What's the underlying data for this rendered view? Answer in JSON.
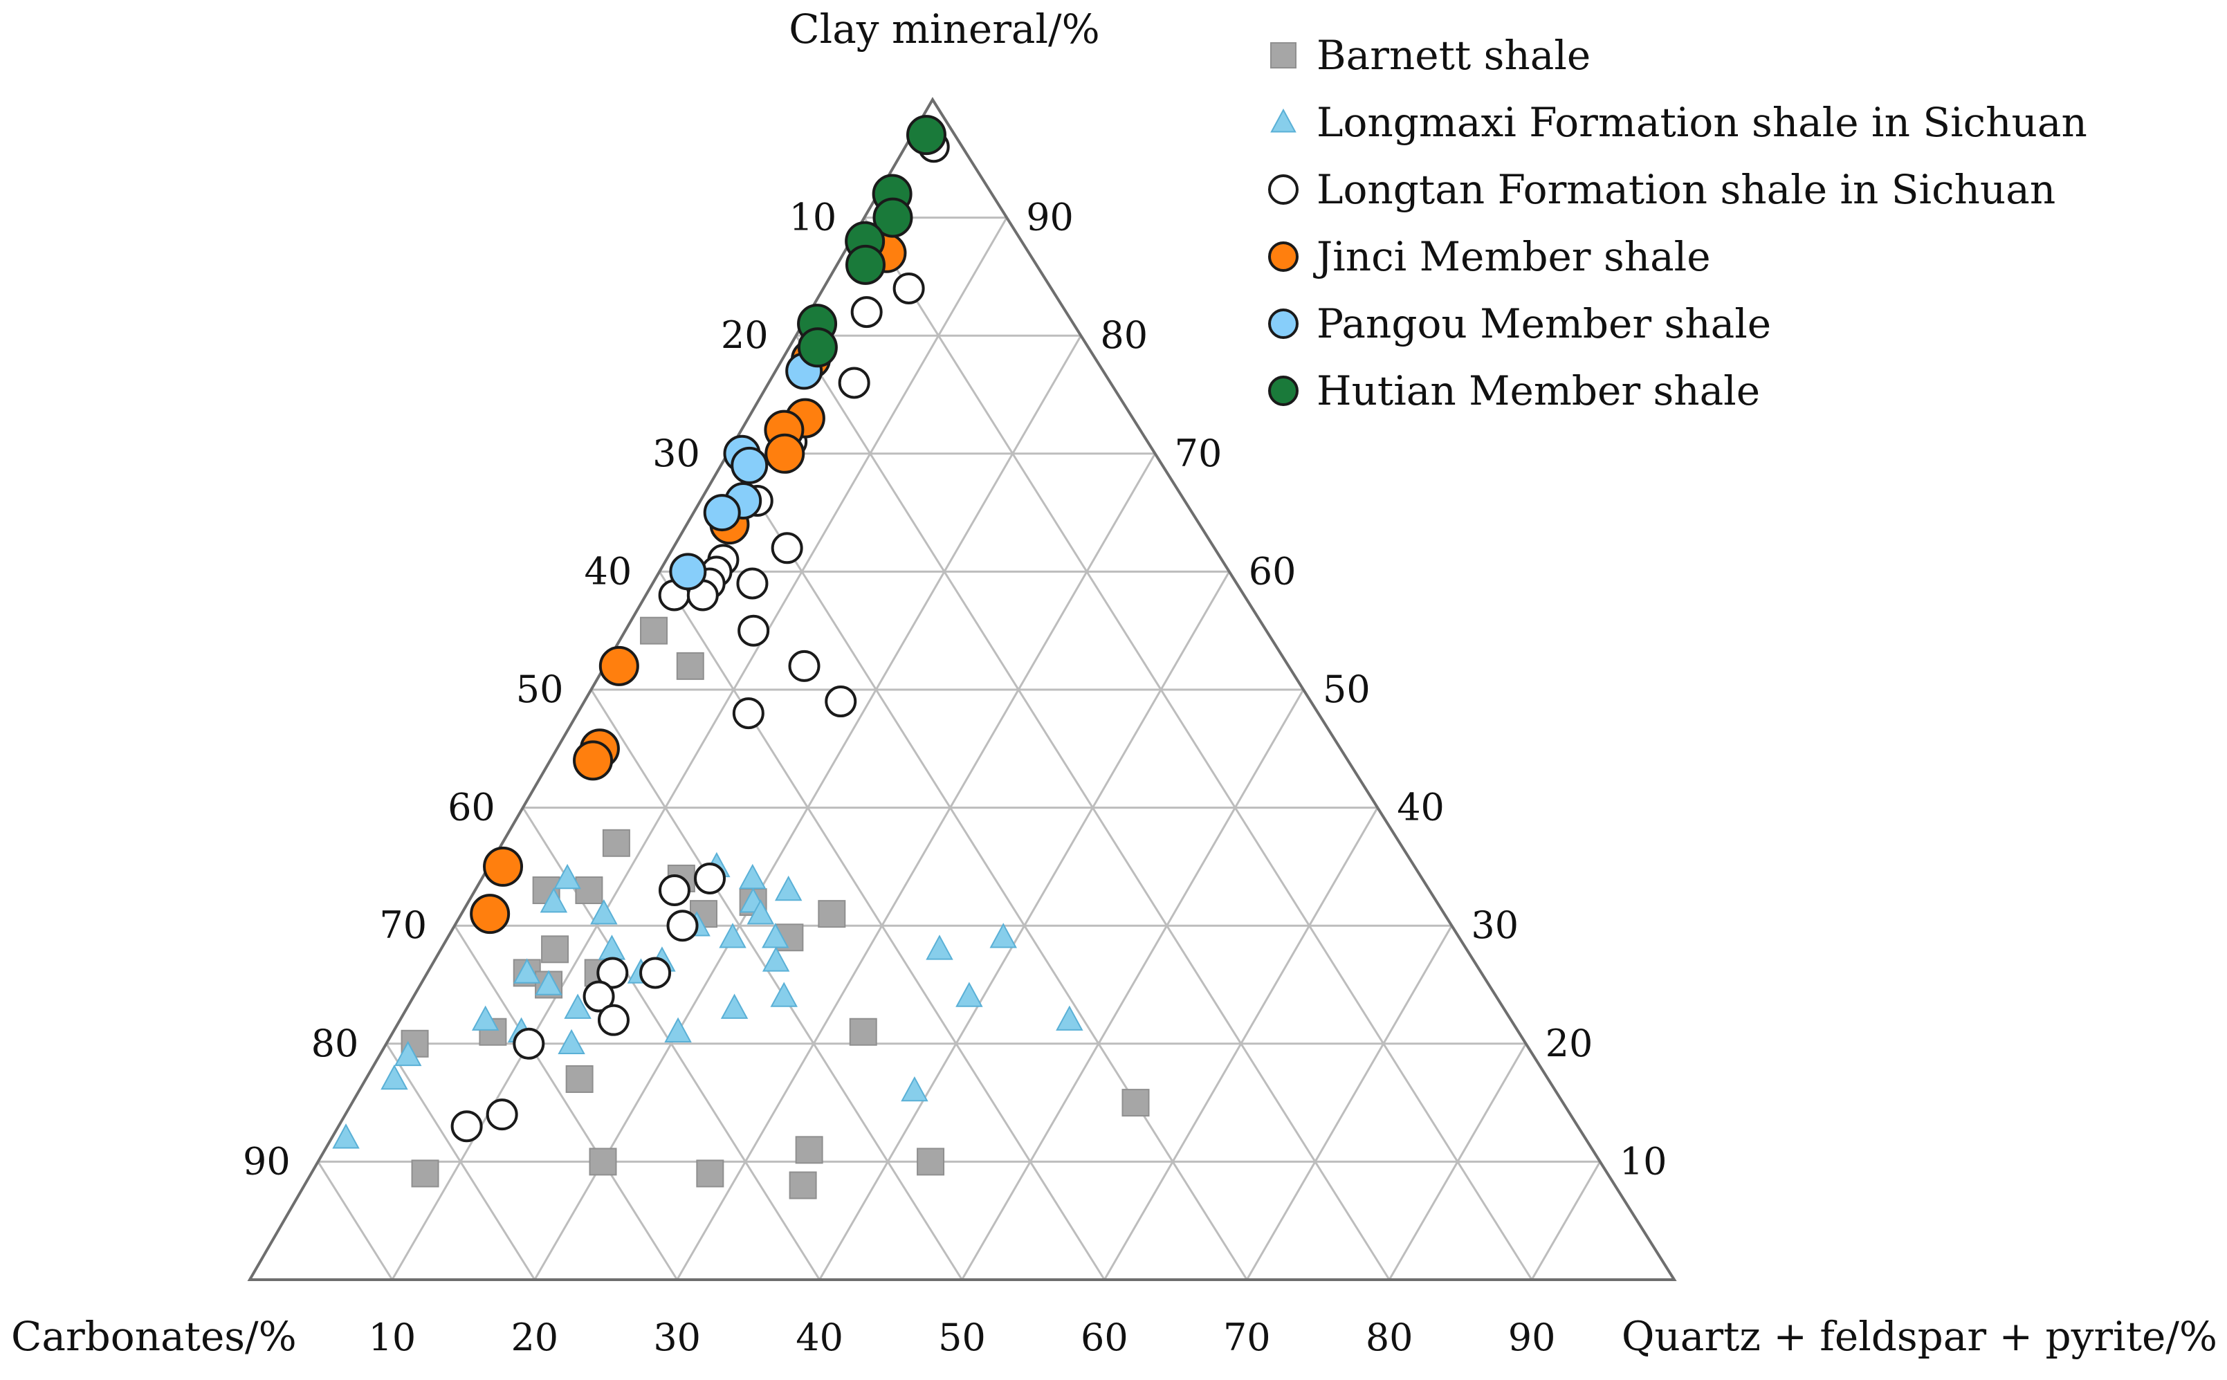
{
  "chart_data": {
    "type": "ternary-scatter",
    "axes": {
      "top": "Clay mineral/%",
      "left": "Carbonates/%",
      "right": "Quartz + feldspar + pyrite/%"
    },
    "left_ticks": [
      "10",
      "20",
      "30",
      "40",
      "50",
      "60",
      "70",
      "80",
      "90"
    ],
    "right_ticks": [
      "90",
      "80",
      "70",
      "60",
      "50",
      "40",
      "30",
      "20",
      "10"
    ],
    "bottom_ticks": [
      "10",
      "20",
      "30",
      "40",
      "50",
      "60",
      "70",
      "80",
      "90"
    ],
    "grid": true,
    "legend_position": "top-right",
    "colors": {
      "barnett": "#a6a6a6",
      "longmaxi": "#87ceeb",
      "longtan": "#ffffff",
      "jinci": "#ff7f0e",
      "pangou": "#87cefa",
      "hutian": "#1a7a3a",
      "grid": "#bdbdbd",
      "frame": "#6e6e6e"
    },
    "series": [
      {
        "name": "Barnett shale",
        "marker": "square",
        "points": [
          [
            52,
            42,
            6
          ],
          [
            37,
            55,
            8
          ],
          [
            34,
            52,
            14
          ],
          [
            33,
            59,
            8
          ],
          [
            33,
            62,
            5
          ],
          [
            32,
            48,
            20
          ],
          [
            31,
            52,
            17
          ],
          [
            29,
            47,
            24
          ],
          [
            28,
            64,
            8
          ],
          [
            26,
            67,
            7
          ],
          [
            25,
            66,
            9
          ],
          [
            31,
            43,
            26
          ],
          [
            26,
            62,
            12
          ],
          [
            21,
            72,
            7
          ],
          [
            15,
            30,
            55
          ],
          [
            10,
            47,
            43
          ],
          [
            11,
            55,
            34
          ],
          [
            9,
            63,
            28
          ],
          [
            8,
            57,
            35
          ],
          [
            10,
            70,
            20
          ],
          [
            17,
            68,
            15
          ],
          [
            21,
            46,
            33
          ],
          [
            9,
            83,
            8
          ],
          [
            20,
            78,
            2
          ],
          [
            55,
            43,
            2
          ]
        ]
      },
      {
        "name": "Longmaxi Formation shale in Sichuan",
        "marker": "triangle",
        "points": [
          [
            32,
            48,
            20
          ],
          [
            34,
            47,
            19
          ],
          [
            35,
            49,
            16
          ],
          [
            31,
            48,
            21
          ],
          [
            33,
            45,
            22
          ],
          [
            29,
            51,
            20
          ],
          [
            29,
            48,
            23
          ],
          [
            30,
            53,
            17
          ],
          [
            27,
            49,
            24
          ],
          [
            24,
            50,
            26
          ],
          [
            23,
            54,
            23
          ],
          [
            26,
            59,
            15
          ],
          [
            21,
            59,
            20
          ],
          [
            24,
            37,
            39
          ],
          [
            28,
            37,
            35
          ],
          [
            29,
            32,
            39
          ],
          [
            22,
            31,
            47
          ],
          [
            16,
            45,
            39
          ],
          [
            31,
            59,
            10
          ],
          [
            28,
            60,
            12
          ],
          [
            27,
            57,
            16
          ],
          [
            32,
            62,
            6
          ],
          [
            34,
            60,
            6
          ],
          [
            25,
            66,
            9
          ],
          [
            26,
            67,
            7
          ],
          [
            22,
            72,
            6
          ],
          [
            19,
            79,
            2
          ],
          [
            17,
            81,
            2
          ],
          [
            12,
            87,
            1
          ],
          [
            23,
            65,
            12
          ],
          [
            21,
            70,
            9
          ],
          [
            20,
            67,
            13
          ]
        ]
      },
      {
        "name": "Longtan Formation shale in Sichuan",
        "marker": "circle",
        "points": [
          [
            96,
            2,
            2
          ],
          [
            84,
            10,
            6
          ],
          [
            82,
            14,
            4
          ],
          [
            76,
            18,
            6
          ],
          [
            71,
            25,
            4
          ],
          [
            66,
            30,
            4
          ],
          [
            62,
            30,
            8
          ],
          [
            61,
            35,
            4
          ],
          [
            60,
            36,
            4
          ],
          [
            59,
            34,
            7
          ],
          [
            59,
            37,
            4
          ],
          [
            58,
            40,
            2
          ],
          [
            58,
            38,
            4
          ],
          [
            55,
            36,
            9
          ],
          [
            52,
            34,
            14
          ],
          [
            49,
            33,
            18
          ],
          [
            48,
            40,
            12
          ],
          [
            60,
            38,
            2
          ],
          [
            34,
            50,
            16
          ],
          [
            33,
            53,
            14
          ],
          [
            30,
            54,
            16
          ],
          [
            26,
            58,
            16
          ],
          [
            26,
            61,
            13
          ],
          [
            24,
            63,
            13
          ],
          [
            22,
            63,
            15
          ],
          [
            20,
            70,
            10
          ],
          [
            14,
            75,
            11
          ],
          [
            13,
            78,
            9
          ]
        ]
      },
      {
        "name": "Jinci Member shale",
        "marker": "circle",
        "points": [
          [
            87,
            10,
            3
          ],
          [
            78,
            20,
            2
          ],
          [
            73,
            23,
            4
          ],
          [
            72,
            25,
            3
          ],
          [
            70,
            26,
            4
          ],
          [
            64,
            33,
            3
          ],
          [
            52,
            47,
            1
          ],
          [
            45,
            52,
            3
          ],
          [
            44,
            53,
            3
          ],
          [
            35,
            64,
            1
          ],
          [
            31,
            67,
            2
          ]
        ]
      },
      {
        "name": "Pangou Member shale",
        "marker": "circle",
        "points": [
          [
            77,
            21,
            2
          ],
          [
            70,
            29,
            1
          ],
          [
            69,
            29,
            2
          ],
          [
            66,
            31,
            3
          ],
          [
            65,
            33,
            2
          ],
          [
            60,
            38,
            2
          ]
        ]
      },
      {
        "name": "Hutian Member shale",
        "marker": "circle",
        "points": [
          [
            97,
            2,
            1
          ],
          [
            92,
            7,
            1
          ],
          [
            90,
            8,
            2
          ],
          [
            88,
            11,
            1
          ],
          [
            86,
            12,
            2
          ],
          [
            81,
            18,
            1
          ],
          [
            79,
            19,
            2
          ]
        ]
      }
    ]
  }
}
